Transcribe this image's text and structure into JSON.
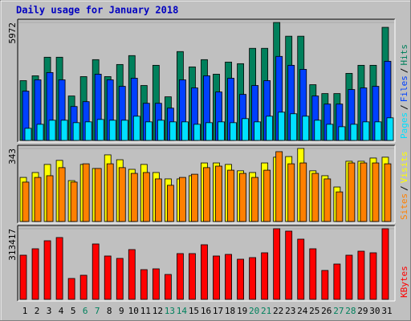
{
  "chart_data": [
    {
      "type": "bar",
      "title": "Daily usage for January 2018",
      "legend_separator": "/",
      "ylim": [
        0,
        5972
      ],
      "yticks": [
        5972
      ],
      "series": [
        {
          "name": "Hits",
          "color": "#00805c",
          "values": [
            3027,
            3272,
            4213,
            4213,
            2250,
            3231,
            4090,
            3231,
            3845,
            4295,
            2781,
            3804,
            2209,
            4499,
            3722,
            4090,
            3354,
            3967,
            3886,
            4663,
            4663,
            5972,
            5276,
            5276,
            2822,
            2372,
            2372,
            3395,
            3804,
            3804,
            5726
          ]
        },
        {
          "name": "Files",
          "color": "#0040ff",
          "values": [
            2495,
            3068,
            3436,
            3068,
            1718,
            1963,
            3354,
            3068,
            2740,
            3149,
            1881,
            1881,
            1636,
            3068,
            2659,
            3272,
            2454,
            3149,
            2331,
            2781,
            3027,
            4254,
            3804,
            3599,
            2250,
            1841,
            1841,
            2577,
            2659,
            2740,
            4008
          ]
        },
        {
          "name": "Pages",
          "color": "#00e0ff",
          "values": [
            614,
            818,
            1023,
            1023,
            900,
            941,
            1063,
            1023,
            1023,
            1227,
            941,
            1023,
            941,
            941,
            818,
            900,
            941,
            900,
            1104,
            941,
            1227,
            1432,
            1350,
            1227,
            1023,
            818,
            695,
            818,
            941,
            941,
            1145
          ]
        }
      ]
    },
    {
      "type": "bar",
      "legend_separator": "/",
      "ylim": [
        0,
        343
      ],
      "yticks": [
        343
      ],
      "series": [
        {
          "name": "Visits",
          "color": "#ffff00",
          "values": [
            207,
            230,
            268,
            287,
            192,
            268,
            249,
            313,
            290,
            245,
            268,
            230,
            200,
            200,
            215,
            275,
            275,
            268,
            238,
            230,
            275,
            302,
            305,
            343,
            238,
            215,
            162,
            283,
            283,
            298,
            302
          ]
        },
        {
          "name": "Sites",
          "color": "#ff8000",
          "values": [
            185,
            207,
            215,
            253,
            185,
            271,
            249,
            271,
            253,
            226,
            230,
            200,
            170,
            207,
            222,
            253,
            260,
            241,
            226,
            207,
            241,
            328,
            271,
            275,
            226,
            200,
            139,
            275,
            275,
            275,
            271
          ]
        }
      ]
    },
    {
      "type": "bar",
      "ylim": [
        0,
        313417
      ],
      "yticks": [
        313417
      ],
      "categories": [
        "1",
        "2",
        "3",
        "4",
        "5",
        "6",
        "7",
        "8",
        "9",
        "10",
        "11",
        "12",
        "13",
        "14",
        "15",
        "16",
        "17",
        "18",
        "19",
        "20",
        "21",
        "22",
        "23",
        "24",
        "25",
        "26",
        "27",
        "28",
        "29",
        "30",
        "31"
      ],
      "x_label_colors": [
        "#000000",
        "#000000",
        "#000000",
        "#000000",
        "#000000",
        "#00805c",
        "#00805c",
        "#000000",
        "#000000",
        "#000000",
        "#000000",
        "#000000",
        "#00805c",
        "#00805c",
        "#000000",
        "#000000",
        "#000000",
        "#000000",
        "#000000",
        "#00805c",
        "#00805c",
        "#000000",
        "#000000",
        "#000000",
        "#000000",
        "#000000",
        "#00805c",
        "#00805c",
        "#000000",
        "#000000",
        "#000000"
      ],
      "series": [
        {
          "name": "KBytes",
          "color": "#ff0000",
          "values": [
            195910,
            224406,
            260026,
            274274,
            92612,
            106860,
            245778,
            192348,
            181662,
            220844,
            131794,
            135356,
            110422,
            203034,
            203034,
            242216,
            192348,
            199472,
            178100,
            185224,
            206596,
            313417,
            302770,
            267150,
            224406,
            128232,
            156728,
            195910,
            213720,
            206596,
            313417
          ]
        }
      ]
    }
  ]
}
